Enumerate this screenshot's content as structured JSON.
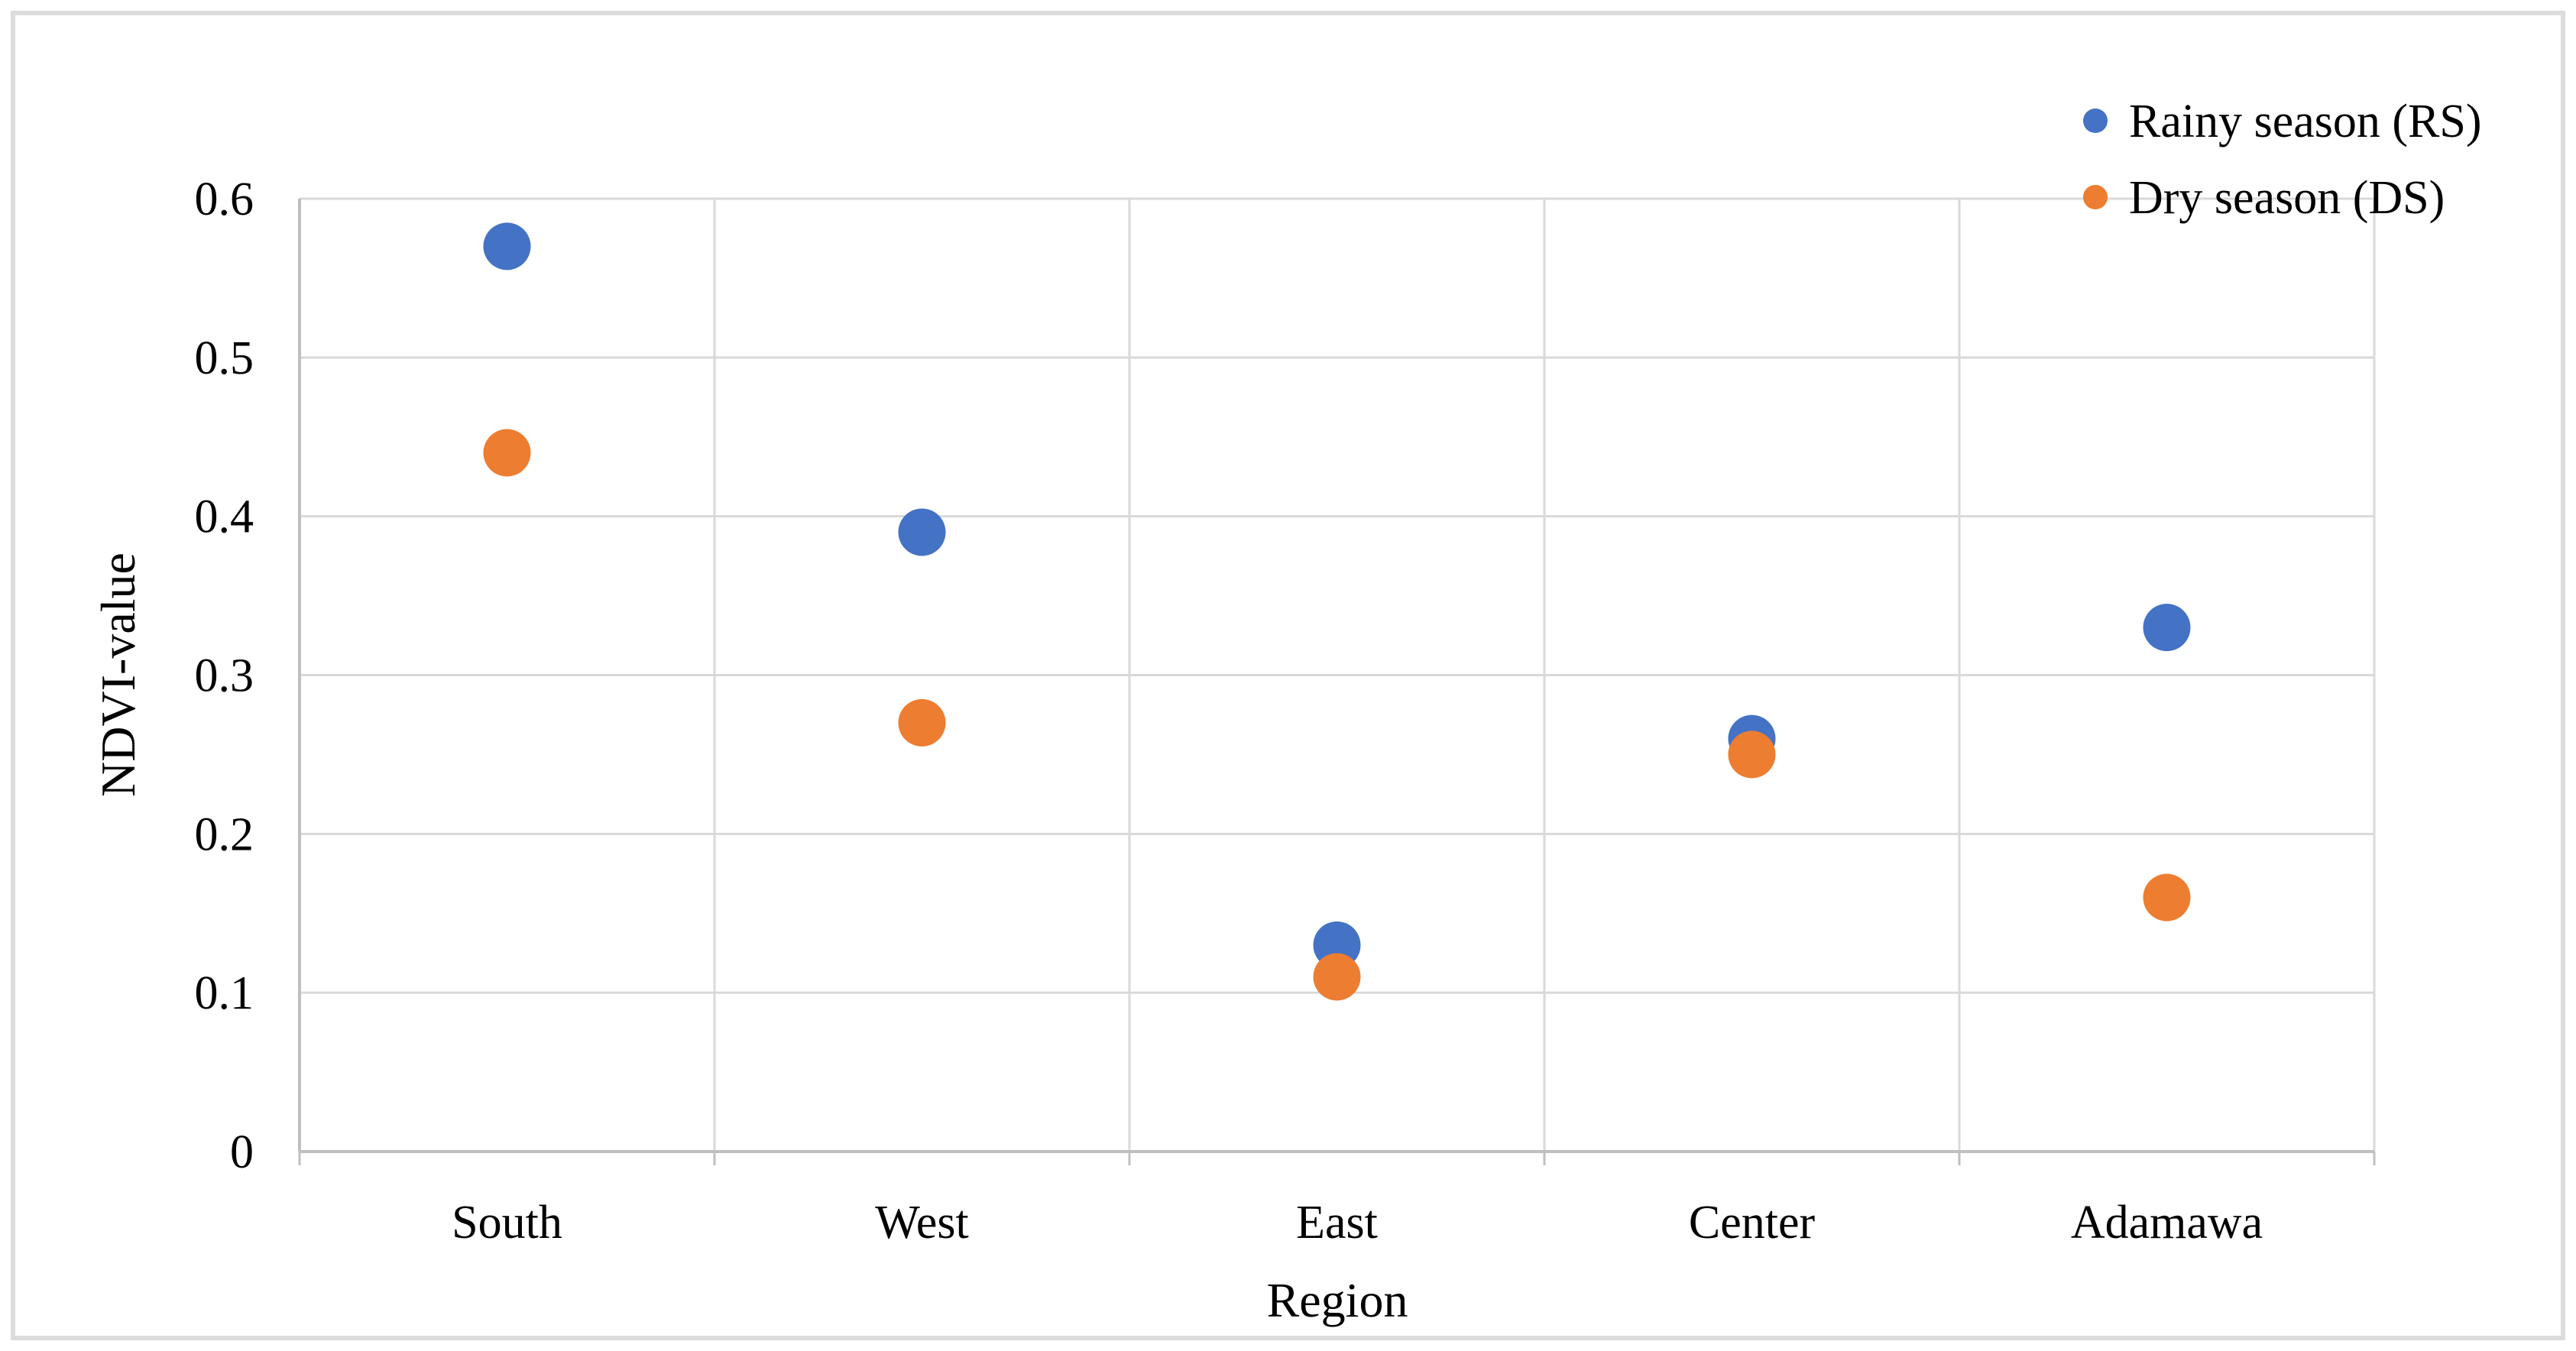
{
  "figure": {
    "background": "#ffffff",
    "border_color": "#dcdcdc"
  },
  "chart_data": {
    "type": "scatter",
    "title": "",
    "xlabel": "Region",
    "ylabel": "NDVI-value",
    "categories": [
      "South",
      "West",
      "East",
      "Center",
      "Adamawa"
    ],
    "series": [
      {
        "name": "Rainy season (RS)",
        "color": "#4472C4",
        "values": [
          0.57,
          0.39,
          0.13,
          0.26,
          0.33
        ]
      },
      {
        "name": "Dry season (DS)",
        "color": "#ED7D31",
        "values": [
          0.44,
          0.27,
          0.11,
          0.25,
          0.16
        ]
      }
    ],
    "ylim": [
      0,
      0.6
    ],
    "ytick_step": 0.1,
    "ytick_labels": [
      "0",
      "0.1",
      "0.2",
      "0.3",
      "0.4",
      "0.5",
      "0.6"
    ],
    "grid": true,
    "legend_position": "top-right",
    "gridline_color": "#D9D9D9",
    "axis_color": "#BFBFBF"
  }
}
